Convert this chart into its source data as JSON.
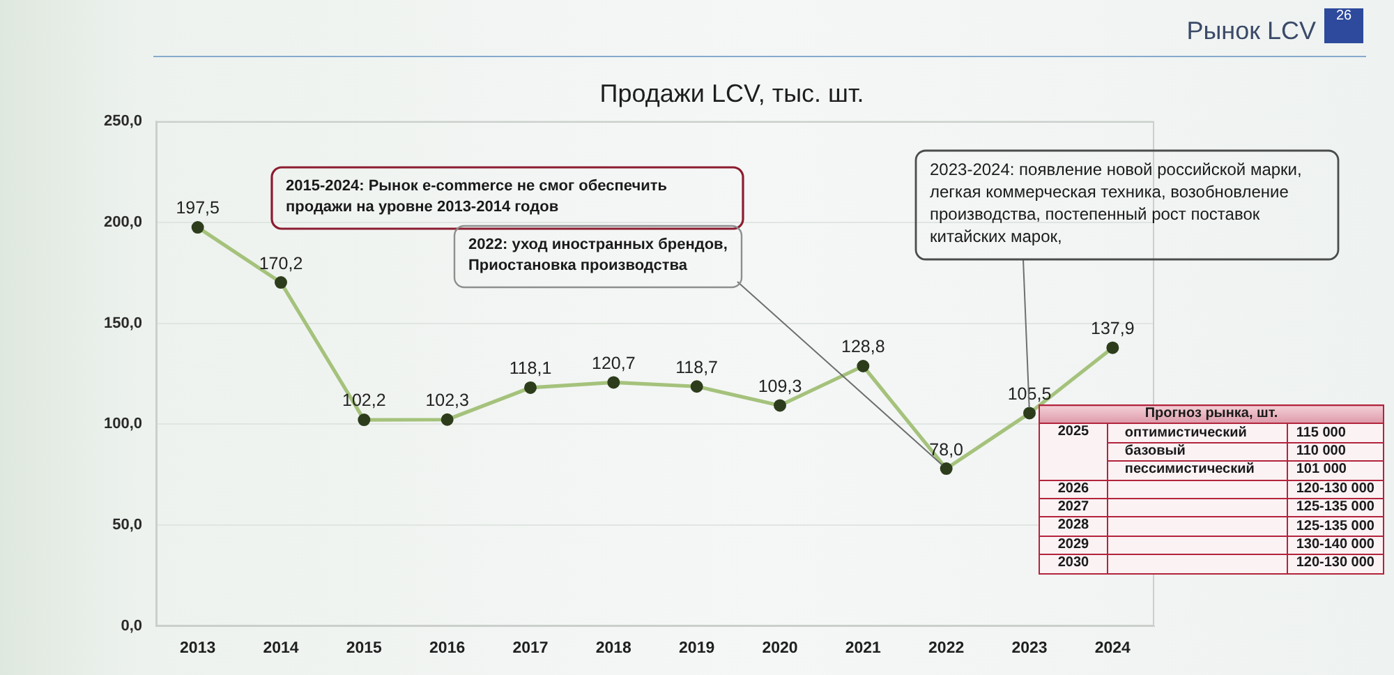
{
  "chart_data": {
    "type": "line",
    "title": "Продажи LCV, тыс. шт.",
    "categories": [
      "2013",
      "2014",
      "2015",
      "2016",
      "2017",
      "2018",
      "2019",
      "2020",
      "2021",
      "2022",
      "2023",
      "2024"
    ],
    "series": [
      {
        "color": "#a5c27c",
        "colors": [
          "#2d3d1c",
          "#2d3d1c",
          "#2d3d1c",
          "#2d3d1c",
          "#2d3d1c",
          "#2d3d1c",
          "#2d3d1c",
          "#2d3d1c",
          "#2d3d1c",
          "#2d3d1c",
          "#2d3d1c",
          "#2d3d1c"
        ],
        "values": [
          197.5,
          170.2,
          102.2,
          102.3,
          118.1,
          120.7,
          118.7,
          109.3,
          128.8,
          78.0,
          105.5,
          137.9
        ],
        "value_labels": [
          "197,5",
          "170,2",
          "102,2",
          "102,3",
          "118,1",
          "120,7",
          "118,7",
          "109,3",
          "128,8",
          "78,0",
          "105,5",
          "137,9"
        ]
      }
    ],
    "ylim": [
      0,
      250
    ],
    "yticks": [
      {
        "value": 0,
        "label": "0,0"
      },
      {
        "value": 50,
        "label": "50,0"
      },
      {
        "value": 100,
        "label": "100,0"
      },
      {
        "value": 150,
        "label": "150,0"
      },
      {
        "value": 200,
        "label": "200,0"
      },
      {
        "value": 250,
        "label": "250,0"
      }
    ],
    "grid": "y",
    "marker": "circle",
    "annotations": [
      "Рынок LCV",
      "26",
      "2015-2024: Рынок e-commerce не смог обеспечить продажи на уровне 2013-2014 годов",
      {
        "text": "2022: уход иностранных брендов, Приостановка производства",
        "x": "2022",
        "y": 78.0
      },
      {
        "text": "2023-2024: появление новой российской марки, легкая коммерческая техника, возобновление производства, постепенный рост поставок китайских марок,",
        "x": "2023",
        "y": 105.5
      },
      "Прогноз рынка, шт.",
      "2025\tоптимистический\t115 000",
      "\tбазовый\t110 000",
      "\tпессимистический\t101 000",
      "2026\t\t120-130 000",
      "2027\t\t125-135 000",
      "2028\t\t125-135 000",
      "2029\t\t130-140 000",
      "2030\t\t120-130 000"
    ]
  }
}
